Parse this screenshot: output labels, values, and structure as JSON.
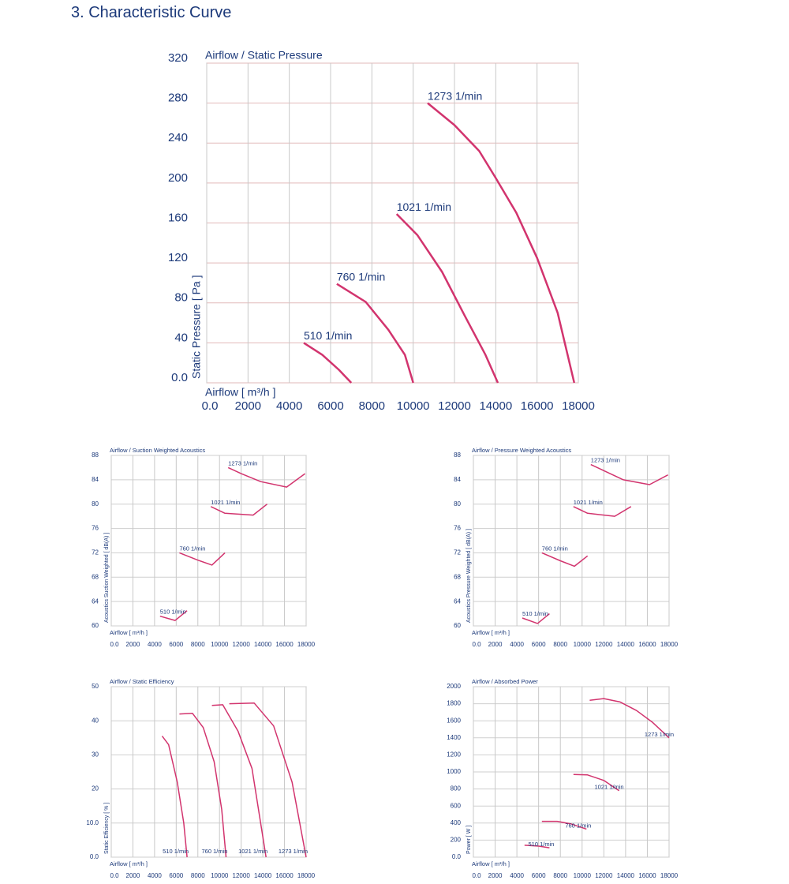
{
  "heading": "3. Characteristic Curve",
  "chart_data": [
    {
      "type": "line",
      "title": "Airflow / Static Pressure",
      "xlabel": "Airflow [ m³/h ]",
      "ylabel": "Static Pressure [ Pa ]",
      "xlim": [
        0,
        18000
      ],
      "ylim": [
        0,
        320
      ],
      "grid": true,
      "xticks": [
        {
          "value": 0,
          "label": "0.0"
        },
        2000,
        4000,
        6000,
        8000,
        10000,
        12000,
        14000,
        16000,
        18000
      ],
      "yticks": [
        {
          "value": 0,
          "label": "0.0"
        },
        40,
        80,
        120,
        160,
        200,
        240,
        280,
        320
      ],
      "series": [
        {
          "name": "1273 1/min",
          "color": "#d2346e",
          "x": [
            10700,
            12000,
            13200,
            14000,
            15000,
            16000,
            17000,
            17800
          ],
          "values": [
            280,
            258,
            232,
            205,
            170,
            125,
            70,
            0
          ]
        },
        {
          "name": "1021 1/min",
          "color": "#d2346e",
          "x": [
            9200,
            10200,
            11400,
            12500,
            13500,
            14100
          ],
          "values": [
            169,
            148,
            111,
            67,
            28,
            0
          ]
        },
        {
          "name": "760 1/min",
          "color": "#d2346e",
          "x": [
            6300,
            7700,
            8800,
            9600,
            10000
          ],
          "values": [
            99,
            81,
            53,
            28,
            0
          ]
        },
        {
          "name": "510 1/min",
          "color": "#d2346e",
          "x": [
            4700,
            5600,
            6400,
            7000
          ],
          "values": [
            40,
            28,
            13,
            0
          ]
        }
      ]
    },
    {
      "type": "line",
      "title": "Airflow / Suction Weighted Acoustics",
      "xlabel": "Airflow [ m³/h ]",
      "ylabel": "Acoustics Suction Weighted [ dB(A) ]",
      "xlim": [
        0,
        18000
      ],
      "ylim": [
        60,
        88
      ],
      "grid": true,
      "xticks": [
        {
          "value": 0,
          "label": "0.0"
        },
        2000,
        4000,
        6000,
        8000,
        10000,
        12000,
        14000,
        16000,
        18000
      ],
      "yticks": [
        60,
        64,
        68,
        72,
        76,
        80,
        84,
        88
      ],
      "series": [
        {
          "name": "1273 1/min",
          "color": "#d2346e",
          "x": [
            10800,
            12000,
            13800,
            16200,
            17900
          ],
          "values": [
            86,
            85,
            83.7,
            82.8,
            85
          ]
        },
        {
          "name": "1021 1/min",
          "color": "#d2346e",
          "x": [
            9200,
            10500,
            13100,
            14400
          ],
          "values": [
            79.6,
            78.5,
            78.2,
            80
          ]
        },
        {
          "name": "760 1/min",
          "color": "#d2346e",
          "x": [
            6300,
            8000,
            9300,
            10500
          ],
          "values": [
            72,
            70.8,
            70,
            72
          ]
        },
        {
          "name": "510 1/min",
          "color": "#d2346e",
          "x": [
            4500,
            5900,
            7000
          ],
          "values": [
            61.6,
            60.9,
            62.5
          ]
        }
      ]
    },
    {
      "type": "line",
      "title": "Airflow / Pressure Weighted Acoustics",
      "xlabel": "Airflow [ m³/h ]",
      "ylabel": "Acoustics Pressure Weighted [ dB(A) ]",
      "xlim": [
        0,
        18000
      ],
      "ylim": [
        60,
        88
      ],
      "grid": true,
      "xticks": [
        {
          "value": 0,
          "label": "0.0"
        },
        2000,
        4000,
        6000,
        8000,
        10000,
        12000,
        14000,
        16000,
        18000
      ],
      "yticks": [
        60,
        64,
        68,
        72,
        76,
        80,
        84,
        88
      ],
      "series": [
        {
          "name": "1273 1/min",
          "color": "#d2346e",
          "x": [
            10800,
            12000,
            13800,
            16200,
            17900
          ],
          "values": [
            86.5,
            85.5,
            84,
            83.2,
            84.8
          ]
        },
        {
          "name": "1021 1/min",
          "color": "#d2346e",
          "x": [
            9200,
            10500,
            13000,
            14500
          ],
          "values": [
            79.6,
            78.5,
            78,
            79.6
          ]
        },
        {
          "name": "760 1/min",
          "color": "#d2346e",
          "x": [
            6300,
            8000,
            9300,
            10500
          ],
          "values": [
            72,
            70.7,
            69.8,
            71.5
          ]
        },
        {
          "name": "510 1/min",
          "color": "#d2346e",
          "x": [
            4500,
            5900,
            7000
          ],
          "values": [
            61.3,
            60.4,
            62
          ]
        }
      ]
    },
    {
      "type": "line",
      "title": "Airflow / Static Efficiency",
      "xlabel": "Airflow [ m³/h ]",
      "ylabel": "Static Efficiency [ % ]",
      "xlim": [
        0,
        18000
      ],
      "ylim": [
        0,
        50
      ],
      "grid": true,
      "xticks": [
        {
          "value": 0,
          "label": "0.0"
        },
        2000,
        4000,
        6000,
        8000,
        10000,
        12000,
        14000,
        16000,
        18000
      ],
      "yticks": [
        {
          "value": 0,
          "label": "0.0"
        },
        {
          "value": 10,
          "label": "10.0"
        },
        20,
        30,
        40,
        50
      ],
      "series": [
        {
          "name": "510 1/min",
          "color": "#d2346e",
          "x": [
            4700,
            5300,
            6100,
            6700,
            7000
          ],
          "values": [
            35.5,
            33,
            22,
            10,
            0
          ]
        },
        {
          "name": "760 1/min",
          "color": "#d2346e",
          "x": [
            6300,
            7500,
            8500,
            9500,
            10200,
            10600
          ],
          "values": [
            42,
            42.2,
            38,
            28,
            14,
            0
          ]
        },
        {
          "name": "1021 1/min",
          "color": "#d2346e",
          "x": [
            9300,
            10300,
            11700,
            13000,
            14300
          ],
          "values": [
            44.5,
            44.7,
            37,
            26,
            0
          ]
        },
        {
          "name": "1273 1/min",
          "color": "#d2346e",
          "x": [
            10900,
            13200,
            15000,
            16700,
            18000
          ],
          "values": [
            45,
            45.2,
            38.5,
            22,
            0
          ]
        }
      ]
    },
    {
      "type": "line",
      "title": "Airflow / Absorbed Power",
      "xlabel": "Airflow [ m³/h ]",
      "ylabel": "Power [ W ]",
      "xlim": [
        0,
        18000
      ],
      "ylim": [
        0,
        2000
      ],
      "grid": true,
      "xticks": [
        {
          "value": 0,
          "label": "0.0"
        },
        2000,
        4000,
        6000,
        8000,
        10000,
        12000,
        14000,
        16000,
        18000
      ],
      "yticks": [
        {
          "value": 0,
          "label": "0.0"
        },
        200,
        400,
        600,
        800,
        1000,
        1200,
        1400,
        1600,
        1800,
        2000
      ],
      "series": [
        {
          "name": "1273 1/min",
          "color": "#d2346e",
          "x": [
            10700,
            12000,
            13500,
            15000,
            16500,
            18000
          ],
          "values": [
            1840,
            1860,
            1820,
            1720,
            1580,
            1400
          ]
        },
        {
          "name": "1021 1/min",
          "color": "#d2346e",
          "x": [
            9200,
            10500,
            12000,
            13400
          ],
          "values": [
            970,
            965,
            900,
            780
          ]
        },
        {
          "name": "760 1/min",
          "color": "#d2346e",
          "x": [
            6300,
            7700,
            9000,
            10400
          ],
          "values": [
            420,
            420,
            390,
            330
          ]
        },
        {
          "name": "510 1/min",
          "color": "#d2346e",
          "x": [
            4700,
            6000,
            7000
          ],
          "values": [
            140,
            130,
            110
          ]
        }
      ]
    }
  ]
}
